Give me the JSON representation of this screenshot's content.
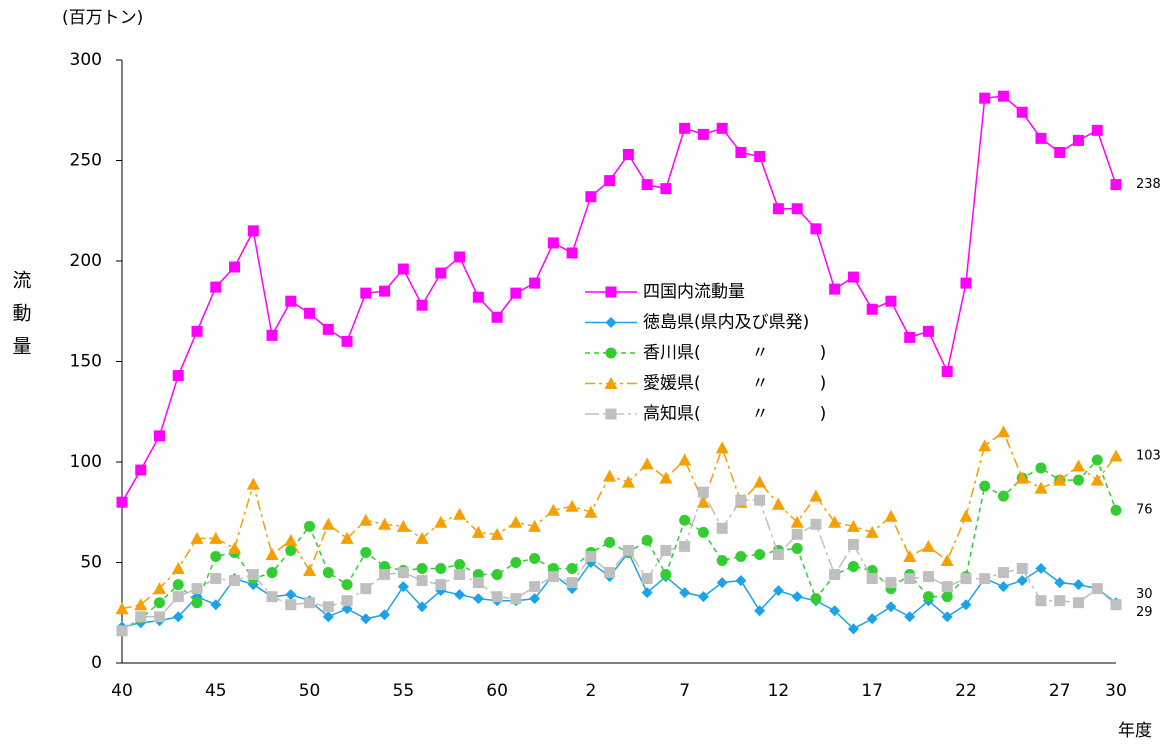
{
  "chart_data": {
    "type": "line",
    "unit_label": "(百万トン)",
    "y_label": "流動量",
    "x_label": "年度",
    "categories": [
      "40",
      null,
      null,
      null,
      null,
      "45",
      null,
      null,
      null,
      null,
      "50",
      null,
      null,
      null,
      null,
      "55",
      null,
      null,
      null,
      null,
      "60",
      null,
      null,
      null,
      null,
      "2",
      null,
      null,
      null,
      null,
      "7",
      null,
      null,
      null,
      null,
      "12",
      null,
      null,
      null,
      null,
      "17",
      null,
      null,
      null,
      null,
      "22",
      null,
      null,
      null,
      null,
      "27",
      null,
      null,
      "30"
    ],
    "ylim": [
      0,
      300
    ],
    "yticks": [
      0,
      50,
      100,
      150,
      200,
      250,
      300
    ],
    "series": [
      {
        "name": "四国内流動量",
        "color": "#ff00ff",
        "marker": "square",
        "dash": "solid",
        "values": [
          80,
          96,
          113,
          143,
          165,
          187,
          197,
          215,
          163,
          180,
          174,
          166,
          160,
          184,
          185,
          196,
          178,
          194,
          202,
          182,
          172,
          184,
          189,
          209,
          204,
          232,
          240,
          253,
          238,
          236,
          266,
          263,
          266,
          254,
          252,
          226,
          226,
          216,
          186,
          192,
          176,
          180,
          162,
          165,
          145,
          189,
          281,
          282,
          274,
          261,
          254,
          260,
          265,
          238
        ]
      },
      {
        "name": "徳島県(県内及び県発)",
        "color": "#1aa3e8",
        "marker": "diamond",
        "dash": "solid",
        "values": [
          18,
          20,
          21,
          23,
          33,
          29,
          42,
          39,
          33,
          34,
          31,
          23,
          27,
          22,
          24,
          38,
          28,
          36,
          34,
          32,
          31,
          31,
          32,
          44,
          37,
          50,
          43,
          55,
          35,
          43,
          35,
          33,
          40,
          41,
          26,
          36,
          33,
          31,
          26,
          17,
          22,
          28,
          23,
          31,
          23,
          29,
          42,
          38,
          41,
          47,
          40,
          39,
          37,
          30
        ]
      },
      {
        "name": "香川県(　　　〃　　　)",
        "color": "#33cc33",
        "marker": "circle",
        "dash": "dashed",
        "values": [
          16,
          22,
          30,
          39,
          30,
          53,
          55,
          42,
          45,
          56,
          68,
          45,
          39,
          55,
          48,
          46,
          47,
          47,
          49,
          44,
          44,
          50,
          52,
          47,
          47,
          55,
          60,
          55,
          61,
          44,
          71,
          65,
          51,
          53,
          54,
          56,
          57,
          32,
          44,
          48,
          46,
          37,
          44,
          33,
          33,
          43,
          88,
          83,
          92,
          97,
          91,
          91,
          101,
          76
        ]
      },
      {
        "name": "愛媛県(　　　〃　　　)",
        "color": "#f5a000",
        "marker": "triangle",
        "dash": "dashdot",
        "values": [
          27,
          29,
          37,
          47,
          62,
          62,
          57,
          89,
          54,
          61,
          46,
          69,
          62,
          71,
          69,
          68,
          62,
          70,
          74,
          65,
          64,
          70,
          68,
          76,
          78,
          75,
          93,
          90,
          99,
          92,
          101,
          80,
          107,
          80,
          90,
          79,
          70,
          83,
          70,
          68,
          65,
          73,
          53,
          58,
          51,
          73,
          108,
          115,
          92,
          87,
          91,
          98,
          91,
          103
        ]
      },
      {
        "name": "高知県(　　　〃　　　)",
        "color": "#bfbfbf",
        "marker": "square",
        "dash": "longdashdot",
        "values": [
          16,
          23,
          23,
          33,
          37,
          42,
          41,
          44,
          33,
          29,
          30,
          28,
          31,
          37,
          44,
          45,
          41,
          39,
          44,
          40,
          33,
          32,
          38,
          43,
          40,
          53,
          45,
          56,
          42,
          56,
          58,
          85,
          67,
          81,
          81,
          54,
          64,
          69,
          44,
          59,
          42,
          40,
          42,
          43,
          38,
          42,
          42,
          45,
          47,
          31,
          31,
          30,
          37,
          29
        ]
      }
    ]
  }
}
